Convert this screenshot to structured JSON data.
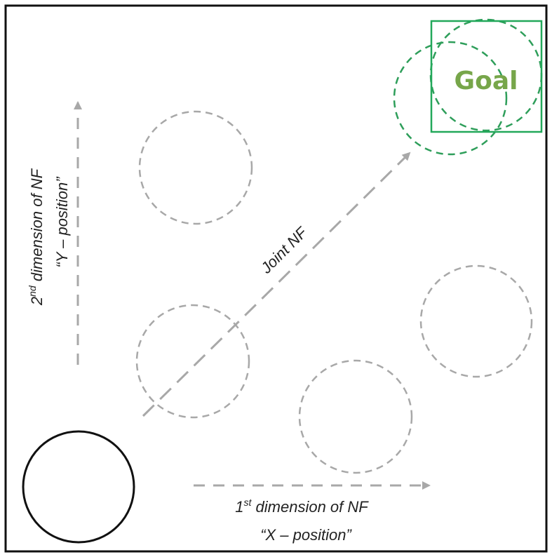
{
  "goal": {
    "label": "Goal",
    "color": "#77a64a",
    "box_color": "#22a85a"
  },
  "axes": {
    "x": {
      "line1_main": "1",
      "line1_sup": "st",
      "line1_rest": " dimension of NF",
      "line2": "“X – position”"
    },
    "y": {
      "line1_main": "2",
      "line1_sup": "nd",
      "line1_rest": " dimension of NF",
      "line2": "“Y – position”"
    },
    "joint": "Joint NF"
  },
  "colors": {
    "frame": "#111111",
    "dashed": "#a8a8a8",
    "arrow": "#a8a8a8",
    "agent": "#111111",
    "goal_circle": "#2e9e5a"
  }
}
